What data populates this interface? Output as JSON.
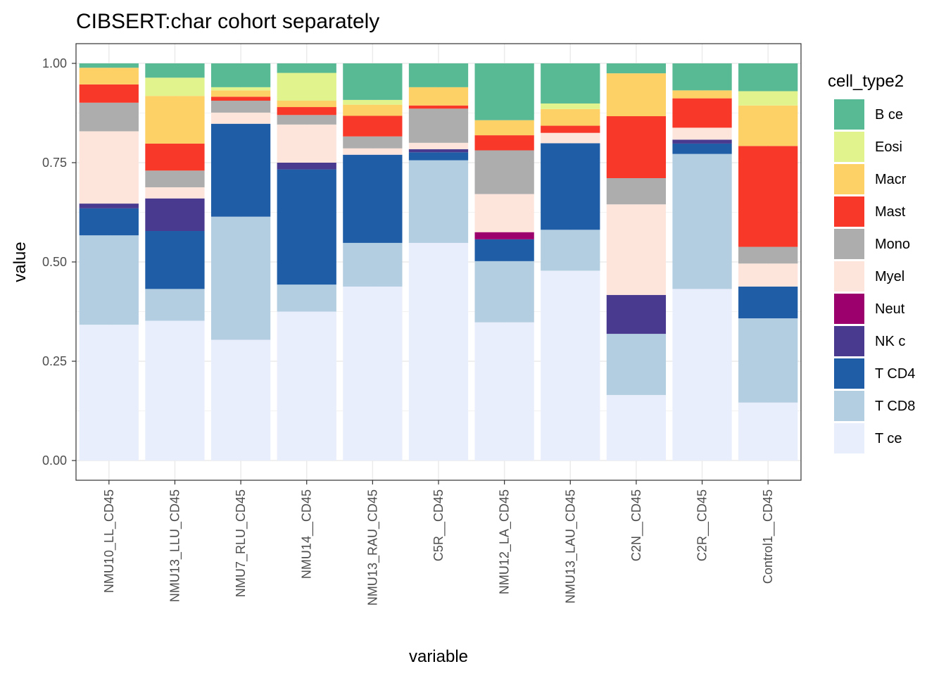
{
  "chart_data": {
    "type": "bar",
    "stacked": true,
    "title": "CIBSERT:char cohort separately",
    "xlabel": "variable",
    "ylabel": "value",
    "ylim": [
      0,
      1.0
    ],
    "yticks": [
      "0.00",
      "0.25",
      "0.50",
      "0.75",
      "1.00"
    ],
    "grid": true,
    "legend_title": "cell_type2",
    "legend_position": "right",
    "categories": [
      "NMU10_LL_CD45",
      "NMU13_LLU_CD45",
      "NMU7_RLU_CD45",
      "NMU14__CD45",
      "NMU13_RAU_CD45",
      "C5R__CD45",
      "NMU12_LA_CD45",
      "NMU13_LAU_CD45",
      "C2N__CD45",
      "C2R__CD45",
      "Control1__CD45"
    ],
    "series": [
      {
        "name": "T ce",
        "color": "#E8EEFB",
        "values": [
          0.342,
          0.352,
          0.304,
          0.375,
          0.438,
          0.548,
          0.348,
          0.478,
          0.165,
          0.432,
          0.146
        ]
      },
      {
        "name": "T CD8",
        "color": "#B3CDE1",
        "values": [
          0.225,
          0.08,
          0.31,
          0.068,
          0.11,
          0.208,
          0.154,
          0.103,
          0.154,
          0.34,
          0.212
        ]
      },
      {
        "name": "T CD4",
        "color": "#1F5EA6",
        "values": [
          0.068,
          0.146,
          0.234,
          0.29,
          0.222,
          0.02,
          0.055,
          0.218,
          0.0,
          0.026,
          0.08
        ]
      },
      {
        "name": "NK c",
        "color": "#4A3A8F",
        "values": [
          0.012,
          0.082,
          0.0,
          0.017,
          0.0,
          0.008,
          0.0,
          0.0,
          0.098,
          0.01,
          0.0
        ]
      },
      {
        "name": "Neut",
        "color": "#9C006C",
        "values": [
          0.0,
          0.0,
          0.0,
          0.0,
          0.0,
          0.0,
          0.018,
          0.0,
          0.0,
          0.0,
          0.0
        ]
      },
      {
        "name": "Myel",
        "color": "#FDE5DC",
        "values": [
          0.182,
          0.028,
          0.028,
          0.096,
          0.016,
          0.016,
          0.096,
          0.026,
          0.228,
          0.03,
          0.058
        ]
      },
      {
        "name": "Mono",
        "color": "#ADADAD",
        "values": [
          0.072,
          0.042,
          0.03,
          0.024,
          0.03,
          0.086,
          0.11,
          0.0,
          0.066,
          0.0,
          0.042
        ]
      },
      {
        "name": "Mast",
        "color": "#F8392A",
        "values": [
          0.046,
          0.068,
          0.01,
          0.02,
          0.052,
          0.008,
          0.038,
          0.018,
          0.156,
          0.074,
          0.254
        ]
      },
      {
        "name": "Macr",
        "color": "#FDD166",
        "values": [
          0.042,
          0.12,
          0.016,
          0.016,
          0.028,
          0.046,
          0.038,
          0.042,
          0.108,
          0.02,
          0.102
        ]
      },
      {
        "name": "Eosi",
        "color": "#E1F38C",
        "values": [
          0.0,
          0.046,
          0.008,
          0.07,
          0.012,
          0.0,
          0.0,
          0.014,
          0.0,
          0.0,
          0.036
        ]
      },
      {
        "name": "B ce",
        "color": "#58B995",
        "values": [
          0.011,
          0.036,
          0.06,
          0.024,
          0.092,
          0.06,
          0.143,
          0.101,
          0.025,
          0.068,
          0.07
        ]
      }
    ],
    "legend_order": [
      "B ce",
      "Eosi",
      "Macr",
      "Mast",
      "Mono",
      "Myel",
      "Neut",
      "NK c",
      "T CD4",
      "T CD8",
      "T ce"
    ]
  }
}
